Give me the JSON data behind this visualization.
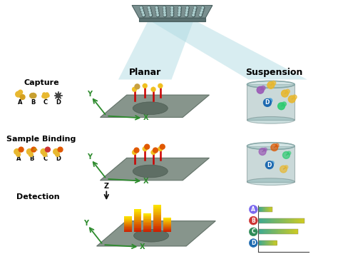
{
  "background_color": "#ffffff",
  "planar_label": "Planar",
  "suspension_label": "Suspension",
  "capture_label": "Capture",
  "sample_binding_label": "Sample Binding",
  "detection_label": "Detection",
  "abcd_labels": [
    "A",
    "B",
    "C",
    "D"
  ],
  "bar_labels": [
    "A",
    "B",
    "C",
    "D"
  ],
  "bar_values": [
    0.28,
    0.95,
    0.82,
    0.38
  ],
  "circle_colors": [
    "#7B68EE",
    "#cc3333",
    "#2e8b57",
    "#1e6ab0"
  ],
  "beam_color": "#aad8e0",
  "plate_top_color": "#7a9090",
  "plate_bottom_color": "#6a8080",
  "plane_color": "#7a8a80",
  "plane_dark_color": "#5a6a60",
  "axis_color_green": "#2d8b2d",
  "axis_color_black": "#111111",
  "font_size_label": 8,
  "font_size_small": 7,
  "font_size_title": 9
}
